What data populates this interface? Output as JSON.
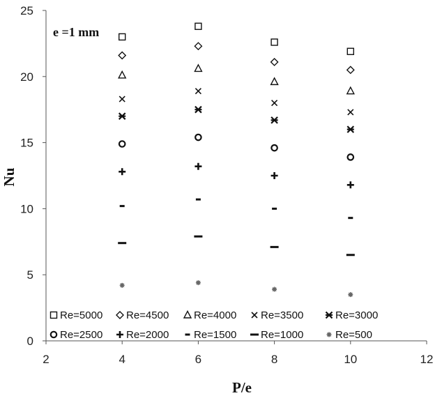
{
  "chart_data": {
    "type": "scatter",
    "title": "",
    "annotation": "e =1 mm",
    "xlabel": "P/e",
    "ylabel": "Nu",
    "xlim": [
      2,
      12
    ],
    "ylim": [
      0,
      25
    ],
    "xticks": [
      "2",
      "4",
      "6",
      "8",
      "10",
      "12"
    ],
    "yticks": [
      "0",
      "5",
      "10",
      "15",
      "20",
      "25"
    ],
    "grid": false,
    "legend_position": "bottom",
    "x": [
      4,
      6,
      8,
      10
    ],
    "series": [
      {
        "name": "Re=5000",
        "marker": "square",
        "values": [
          23.0,
          23.8,
          22.6,
          21.9
        ]
      },
      {
        "name": "Re=4500",
        "marker": "diamond",
        "values": [
          21.6,
          22.3,
          21.1,
          20.5
        ]
      },
      {
        "name": "Re=4000",
        "marker": "triangle",
        "values": [
          20.1,
          20.6,
          19.6,
          18.9
        ]
      },
      {
        "name": "Re=3500",
        "marker": "x",
        "values": [
          18.3,
          18.9,
          18.0,
          17.3
        ]
      },
      {
        "name": "Re=3000",
        "marker": "star",
        "values": [
          17.0,
          17.5,
          16.7,
          16.0
        ]
      },
      {
        "name": "Re=2500",
        "marker": "circle",
        "values": [
          14.9,
          15.4,
          14.6,
          13.9
        ]
      },
      {
        "name": "Re=2000",
        "marker": "plus",
        "values": [
          12.8,
          13.2,
          12.5,
          11.8
        ]
      },
      {
        "name": "Re=1500",
        "marker": "dash",
        "values": [
          10.2,
          10.7,
          10.0,
          9.3
        ]
      },
      {
        "name": "Re=1000",
        "marker": "bar",
        "values": [
          7.4,
          7.9,
          7.1,
          6.5
        ]
      },
      {
        "name": "Re=500",
        "marker": "asterisk",
        "values": [
          4.2,
          4.4,
          3.9,
          3.5
        ]
      }
    ]
  }
}
